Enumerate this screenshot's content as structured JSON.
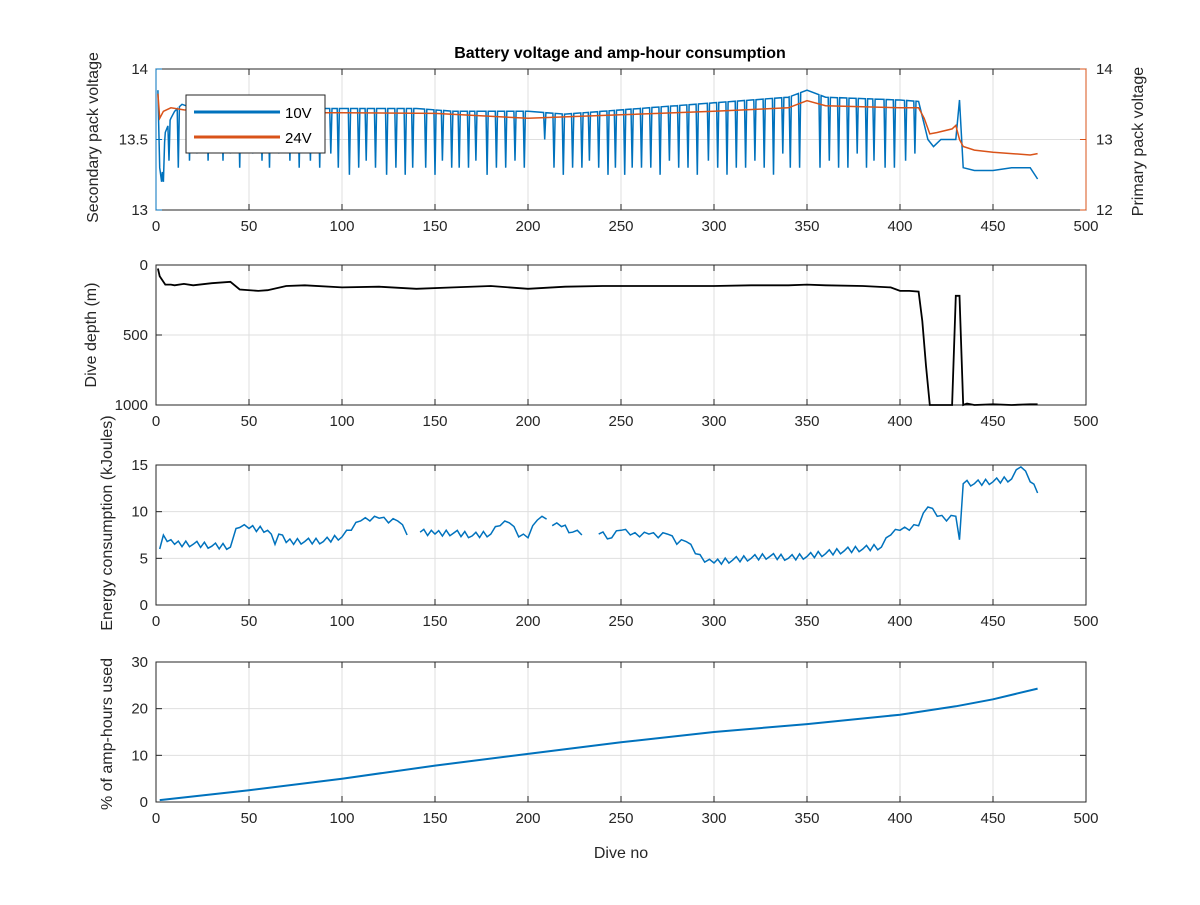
{
  "figure": {
    "title": "Battery voltage and amp-hour consumption",
    "xlabel": "Dive no"
  },
  "colors": {
    "series_10v": "#0072BD",
    "series_24v": "#D95319",
    "depth": "#000000",
    "energy": "#0072BD",
    "amphours": "#0072BD",
    "grid": "#DFDFDF",
    "axis": "#262626"
  },
  "chart_data": [
    {
      "id": "voltage",
      "type": "line",
      "title": "Battery voltage and amp-hour consumption",
      "xlabel": "",
      "ylabel_left": "Secondary pack voltage",
      "ylabel_right": "Primary pack voltage",
      "xlim": [
        0,
        500
      ],
      "ylim_left": [
        13,
        14
      ],
      "ylim_right": [
        12,
        14
      ],
      "xticks": [
        0,
        50,
        100,
        150,
        200,
        250,
        300,
        350,
        400,
        450,
        500
      ],
      "yticks_left": [
        13,
        13.5,
        14
      ],
      "yticks_right": [
        12,
        13,
        14
      ],
      "grid": true,
      "legend": {
        "position": "top-left",
        "entries": [
          "10V",
          "24V"
        ]
      },
      "series": [
        {
          "name": "10V",
          "axis": "left",
          "x": [
            1,
            2,
            3,
            5,
            8,
            10,
            14,
            20,
            30,
            40,
            50,
            60,
            80,
            100,
            120,
            140,
            160,
            180,
            200,
            220,
            240,
            260,
            280,
            300,
            320,
            340,
            350,
            360,
            380,
            400,
            410,
            415,
            418,
            422,
            428,
            430,
            432,
            434,
            440,
            450,
            460,
            470,
            474
          ],
          "y": [
            13.85,
            13.3,
            13.2,
            13.55,
            13.65,
            13.7,
            13.75,
            13.72,
            13.7,
            13.72,
            13.72,
            13.72,
            13.72,
            13.72,
            13.72,
            13.72,
            13.7,
            13.7,
            13.7,
            13.68,
            13.7,
            13.72,
            13.74,
            13.76,
            13.78,
            13.8,
            13.85,
            13.8,
            13.79,
            13.78,
            13.77,
            13.5,
            13.45,
            13.5,
            13.5,
            13.5,
            13.78,
            13.3,
            13.28,
            13.28,
            13.3,
            13.3,
            13.22
          ],
          "dips": {
            "x": [
              4,
              7,
              12,
              18,
              22,
              28,
              31,
              36,
              40,
              45,
              52,
              57,
              61,
              66,
              72,
              77,
              83,
              88,
              94,
              98,
              104,
              109,
              113,
              118,
              124,
              129,
              134,
              138,
              145,
              150,
              154,
              159,
              163,
              168,
              172,
              178,
              183,
              188,
              193,
              198,
              209,
              214,
              219,
              224,
              229,
              233,
              238,
              243,
              247,
              252,
              256,
              261,
              266,
              271,
              276,
              281,
              286,
              291,
              297,
              302,
              307,
              312,
              317,
              322,
              327,
              332,
              337,
              341,
              346,
              357,
              362,
              367,
              372,
              377,
              382,
              386,
              392,
              397,
              403,
              408
            ],
            "y": [
              13.2,
              13.35,
              13.3,
              13.35,
              13.4,
              13.35,
              13.45,
              13.35,
              13.4,
              13.3,
              13.4,
              13.35,
              13.3,
              13.4,
              13.35,
              13.3,
              13.35,
              13.3,
              13.4,
              13.3,
              13.25,
              13.3,
              13.35,
              13.3,
              13.25,
              13.3,
              13.25,
              13.3,
              13.3,
              13.25,
              13.35,
              13.3,
              13.3,
              13.3,
              13.35,
              13.25,
              13.3,
              13.3,
              13.35,
              13.3,
              13.5,
              13.3,
              13.25,
              13.3,
              13.3,
              13.35,
              13.3,
              13.25,
              13.3,
              13.25,
              13.3,
              13.3,
              13.3,
              13.25,
              13.35,
              13.3,
              13.3,
              13.25,
              13.35,
              13.3,
              13.25,
              13.3,
              13.3,
              13.35,
              13.3,
              13.25,
              13.4,
              13.3,
              13.3,
              13.3,
              13.35,
              13.3,
              13.3,
              13.4,
              13.3,
              13.35,
              13.3,
              13.3,
              13.35,
              13.4
            ]
          }
        },
        {
          "name": "24V",
          "axis": "right",
          "x": [
            1,
            2,
            4,
            8,
            15,
            30,
            50,
            80,
            100,
            150,
            200,
            250,
            300,
            340,
            350,
            360,
            400,
            410,
            413,
            416,
            420,
            428,
            430,
            432,
            434,
            440,
            450,
            460,
            470,
            474
          ],
          "y": [
            13.65,
            13.3,
            13.4,
            13.45,
            13.42,
            13.4,
            13.4,
            13.38,
            13.38,
            13.37,
            13.3,
            13.35,
            13.4,
            13.45,
            13.55,
            13.48,
            13.45,
            13.45,
            13.3,
            13.08,
            13.1,
            13.15,
            13.2,
            13.0,
            12.9,
            12.85,
            12.82,
            12.8,
            12.78,
            12.8
          ]
        }
      ]
    },
    {
      "id": "depth",
      "type": "line",
      "xlabel": "",
      "ylabel": "Dive depth (m)",
      "xlim": [
        0,
        500
      ],
      "ylim": [
        0,
        1000
      ],
      "y_reversed": true,
      "xticks": [
        0,
        50,
        100,
        150,
        200,
        250,
        300,
        350,
        400,
        450,
        500
      ],
      "yticks": [
        0,
        500,
        1000
      ],
      "grid": true,
      "series": [
        {
          "name": "",
          "x": [
            1,
            2,
            5,
            8,
            10,
            15,
            20,
            30,
            40,
            45,
            55,
            60,
            70,
            80,
            100,
            120,
            140,
            160,
            180,
            200,
            220,
            240,
            260,
            280,
            300,
            320,
            340,
            350,
            360,
            380,
            395,
            400,
            405,
            410,
            412,
            414,
            416,
            418,
            426,
            428,
            430,
            432,
            434,
            436,
            440,
            450,
            460,
            470,
            474
          ],
          "y": [
            25,
            80,
            140,
            140,
            145,
            135,
            145,
            130,
            120,
            175,
            185,
            180,
            150,
            145,
            160,
            155,
            170,
            160,
            150,
            170,
            155,
            150,
            150,
            150,
            150,
            145,
            145,
            140,
            145,
            150,
            160,
            185,
            185,
            190,
            400,
            720,
            1000,
            1000,
            1000,
            1000,
            220,
            220,
            1000,
            990,
            1000,
            995,
            1000,
            995,
            995
          ]
        }
      ]
    },
    {
      "id": "energy",
      "type": "line",
      "xlabel": "",
      "ylabel": "Energy consumption (kJoules)",
      "xlim": [
        0,
        500
      ],
      "ylim": [
        0,
        15
      ],
      "xticks": [
        0,
        50,
        100,
        150,
        200,
        250,
        300,
        350,
        400,
        450,
        500
      ],
      "yticks": [
        0,
        5,
        10,
        15
      ],
      "grid": true,
      "series": [
        {
          "name": "",
          "segments": [
            {
              "x": [
                2,
                4,
                6,
                10,
                20,
                30,
                40,
                43,
                45,
                50,
                60,
                64,
                66,
                70,
                80,
                90,
                100,
                105,
                110,
                115,
                120,
                125,
                130,
                135
              ],
              "y": [
                6.0,
                7.5,
                6.8,
                6.5,
                6.5,
                6.3,
                6.2,
                8.2,
                8.3,
                8.2,
                8.0,
                6.5,
                7.6,
                6.7,
                6.8,
                6.8,
                7.3,
                8.0,
                9.0,
                9.0,
                9.3,
                8.8,
                9.0,
                7.5
              ]
            },
            {
              "x": [
                142,
                150,
                160,
                170,
                180,
                185,
                190,
                195,
                200,
                205,
                210
              ],
              "y": [
                7.8,
                7.6,
                7.7,
                7.4,
                7.6,
                8.5,
                8.8,
                7.3,
                7.2,
                9.1,
                9.2
              ]
            },
            {
              "x": [
                213,
                218,
                224,
                229
              ],
              "y": [
                8.5,
                8.4,
                7.8,
                7.5
              ]
            },
            {
              "x": [
                238,
                245,
                250,
                255,
                260,
                265,
                270,
                275,
                280,
                285,
                290,
                295,
                300,
                310,
                320,
                330,
                340,
                350,
                360,
                370,
                380,
                390,
                395,
                400,
                405,
                410,
                415,
                420,
                425,
                430,
                432,
                434,
                440,
                450,
                460,
                465,
                470,
                474
              ],
              "y": [
                7.6,
                7.2,
                8.0,
                7.5,
                7.3,
                7.6,
                7.2,
                7.6,
                6.5,
                6.8,
                5.5,
                4.6,
                4.5,
                4.8,
                5.0,
                5.2,
                5.0,
                5.2,
                5.5,
                5.8,
                6.0,
                6.2,
                7.5,
                8.0,
                8.0,
                8.5,
                10.5,
                9.5,
                9.0,
                9.5,
                7.0,
                13.0,
                13.0,
                13.2,
                13.5,
                14.8,
                13.2,
                12.0
              ]
            }
          ]
        }
      ]
    },
    {
      "id": "amphours",
      "type": "line",
      "xlabel": "Dive no",
      "ylabel": "% of amp-hours used",
      "xlim": [
        0,
        500
      ],
      "ylim": [
        0,
        30
      ],
      "xticks": [
        0,
        50,
        100,
        150,
        200,
        250,
        300,
        350,
        400,
        450,
        500
      ],
      "yticks": [
        0,
        10,
        20,
        30
      ],
      "grid": true,
      "series": [
        {
          "name": "",
          "x": [
            2,
            50,
            100,
            150,
            200,
            250,
            300,
            350,
            400,
            430,
            450,
            474
          ],
          "y": [
            0.4,
            2.5,
            5.0,
            7.8,
            10.3,
            12.8,
            15.0,
            16.7,
            18.7,
            20.5,
            22.0,
            24.3
          ]
        }
      ]
    }
  ]
}
